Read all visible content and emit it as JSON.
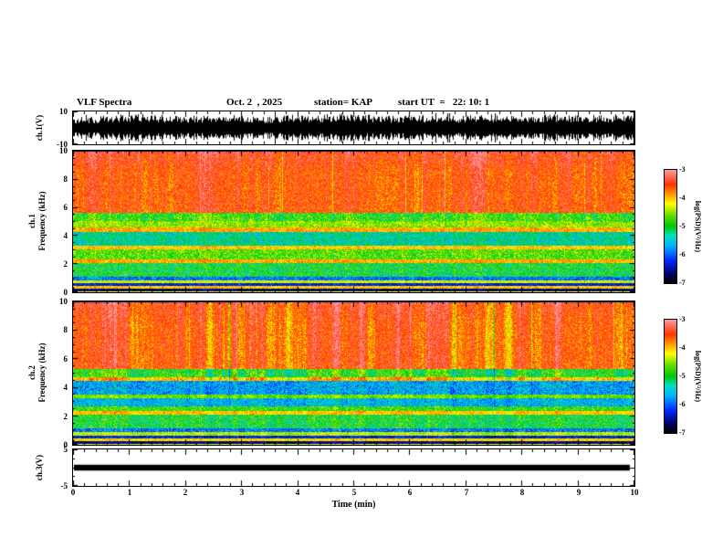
{
  "header": {
    "title": "VLF Spectra",
    "date": "Oct. 2  , 2025",
    "station": "station= KAP",
    "start_ut": "start UT  =   22: 10: 1"
  },
  "panels": {
    "ch1_wave": {
      "label": "ch.1(V)",
      "ymax": "10",
      "ymin": "-10"
    },
    "ch1_spec": {
      "channel": "ch.1",
      "ylabel": "Frequency (kHz)",
      "yticks": [
        "10",
        "8",
        "6",
        "4",
        "2",
        "0"
      ]
    },
    "ch2_spec": {
      "channel": "ch.2",
      "ylabel": "Frequency (kHz)",
      "yticks": [
        "10",
        "8",
        "6",
        "4",
        "2",
        "0"
      ]
    },
    "ch3_wave": {
      "label": "ch.3(V)",
      "ymax": "5",
      "ymin": "-5"
    }
  },
  "xaxis": {
    "label": "Time (min)",
    "ticks": [
      "0",
      "1",
      "2",
      "3",
      "4",
      "5",
      "6",
      "7",
      "8",
      "9",
      "10"
    ]
  },
  "colorbars": [
    {
      "label": "log(PSD)(V²/Hz)",
      "ticks": [
        "-3",
        "-4",
        "-5",
        "-6",
        "-7"
      ]
    },
    {
      "label": "log(PSD)(V²/Hz)",
      "ticks": [
        "-3",
        "-4",
        "-5",
        "-6",
        "-7"
      ]
    }
  ],
  "colorbar_scale": {
    "zlim": [
      -7,
      -3
    ],
    "stops": [
      {
        "t": 0.0,
        "color": "#000000"
      },
      {
        "t": 0.08,
        "color": "#000060"
      },
      {
        "t": 0.2,
        "color": "#0028ff"
      },
      {
        "t": 0.33,
        "color": "#00b4ff"
      },
      {
        "t": 0.42,
        "color": "#00e0c0"
      },
      {
        "t": 0.5,
        "color": "#00c800"
      },
      {
        "t": 0.6,
        "color": "#66dc00"
      },
      {
        "t": 0.7,
        "color": "#ffff00"
      },
      {
        "t": 0.78,
        "color": "#ffa000"
      },
      {
        "t": 0.87,
        "color": "#ff3200"
      },
      {
        "t": 1.0,
        "color": "#ff9c9c"
      }
    ]
  },
  "chart_data": [
    {
      "type": "line",
      "panel": "ch1_wave",
      "style": "noise-waveform",
      "title": "ch.1 time series",
      "xlabel": "Time (min)",
      "ylabel": "ch.1(V)",
      "xlim": [
        0,
        10
      ],
      "ylim": [
        -10,
        10
      ],
      "mean_amplitude_v": 6,
      "peak_amplitude_v": 10,
      "description": "dense broadband noise waveform spanning roughly -8 to +8 V continuously for the full 10 minutes"
    },
    {
      "type": "heatmap",
      "panel": "ch1_spec",
      "style": "spectrogram",
      "title": "ch.1 spectrogram",
      "xlabel": "Time (min)",
      "ylabel": "Frequency (kHz)",
      "zlabel": "log(PSD)(V²/Hz)",
      "xlim": [
        0,
        10
      ],
      "ylim": [
        0,
        10
      ],
      "zlim": [
        -7,
        -3
      ],
      "bands": [
        {
          "f": [
            0.0,
            0.12
          ],
          "v": -4.2,
          "noise": 0.25
        },
        {
          "f": [
            0.12,
            0.3
          ],
          "v": -6.6,
          "noise": 0.35
        },
        {
          "f": [
            0.3,
            0.5
          ],
          "v": -4.0,
          "noise": 0.25
        },
        {
          "f": [
            0.5,
            0.7
          ],
          "v": -6.3,
          "noise": 0.35
        },
        {
          "f": [
            0.7,
            0.9
          ],
          "v": -4.3,
          "noise": 0.25
        },
        {
          "f": [
            0.9,
            1.15
          ],
          "v": -5.9,
          "noise": 0.45
        },
        {
          "f": [
            1.15,
            2.1
          ],
          "v": -5.0,
          "noise": 0.55
        },
        {
          "f": [
            2.1,
            2.35
          ],
          "v": -3.9,
          "noise": 0.25
        },
        {
          "f": [
            2.35,
            3.05
          ],
          "v": -4.7,
          "noise": 0.5
        },
        {
          "f": [
            3.05,
            3.3
          ],
          "v": -4.0,
          "noise": 0.25
        },
        {
          "f": [
            3.3,
            4.3
          ],
          "v": -5.3,
          "noise": 0.5
        },
        {
          "f": [
            4.3,
            4.6
          ],
          "v": -3.9,
          "noise": 0.25
        },
        {
          "f": [
            4.6,
            5.05
          ],
          "v": -4.5,
          "noise": 0.4
        },
        {
          "f": [
            5.05,
            5.65
          ],
          "v": -4.8,
          "noise": 0.5
        },
        {
          "f": [
            5.65,
            10.0
          ],
          "v": -3.55,
          "noise": 0.35
        }
      ],
      "streaks": {
        "strength": 0.5,
        "fmin": 5.0
      },
      "top_fade": {
        "f": 8.5,
        "rate": 0.15
      },
      "description": "continuous red band above ~5.7 kHz with vertical streaking, green 1-5.7 kHz with orange hum lines near 2.2, 3.1 and 4.5 kHz, dark 0-1 kHz with thin orange stripes"
    },
    {
      "type": "heatmap",
      "panel": "ch2_spec",
      "style": "spectrogram",
      "title": "ch.2 spectrogram",
      "xlabel": "Time (min)",
      "ylabel": "Frequency (kHz)",
      "zlabel": "log(PSD)(V²/Hz)",
      "xlim": [
        0,
        10
      ],
      "ylim": [
        0,
        10
      ],
      "zlim": [
        -7,
        -3
      ],
      "bands": [
        {
          "f": [
            0.0,
            0.12
          ],
          "v": -4.2,
          "noise": 0.25
        },
        {
          "f": [
            0.12,
            0.3
          ],
          "v": -6.6,
          "noise": 0.35
        },
        {
          "f": [
            0.3,
            0.5
          ],
          "v": -4.1,
          "noise": 0.25
        },
        {
          "f": [
            0.5,
            0.7
          ],
          "v": -6.3,
          "noise": 0.35
        },
        {
          "f": [
            0.7,
            0.9
          ],
          "v": -4.4,
          "noise": 0.25
        },
        {
          "f": [
            0.9,
            1.15
          ],
          "v": -5.9,
          "noise": 0.45
        },
        {
          "f": [
            1.15,
            2.15
          ],
          "v": -5.0,
          "noise": 0.55
        },
        {
          "f": [
            2.15,
            2.4
          ],
          "v": -4.0,
          "noise": 0.25
        },
        {
          "f": [
            2.4,
            2.7
          ],
          "v": -4.8,
          "noise": 0.45
        },
        {
          "f": [
            2.7,
            3.25
          ],
          "v": -5.6,
          "noise": 0.45
        },
        {
          "f": [
            3.25,
            3.55
          ],
          "v": -4.6,
          "noise": 0.35
        },
        {
          "f": [
            3.55,
            4.5
          ],
          "v": -5.7,
          "noise": 0.5
        },
        {
          "f": [
            4.5,
            4.75
          ],
          "v": -4.0,
          "noise": 0.3
        },
        {
          "f": [
            4.75,
            5.35
          ],
          "v": -4.9,
          "noise": 0.5
        },
        {
          "f": [
            5.35,
            10.0
          ],
          "v": -3.6,
          "noise": 0.35
        }
      ],
      "streaks": {
        "strength": 0.75,
        "fmin": 4.5
      },
      "top_fade": {
        "f": 8.5,
        "rate": 0.1
      },
      "description": "red band above ~5.4 kHz with strong dark-green vertical streaks, blue bands near 2.7-3.2 and 3.6-4.5 kHz, orange hum lines, dark 0-1 kHz with orange stripes"
    },
    {
      "type": "line",
      "panel": "ch3_wave",
      "style": "saturated-bar",
      "title": "ch.3 time series",
      "xlabel": "Time (min)",
      "ylabel": "ch.3(V)",
      "xlim": [
        0,
        10
      ],
      "ylim": [
        -5,
        5
      ],
      "bar_halfwidth_v": 0.8,
      "description": "flat saturated trace at 0 V rendered as a thick solid black bar across the full record"
    }
  ]
}
